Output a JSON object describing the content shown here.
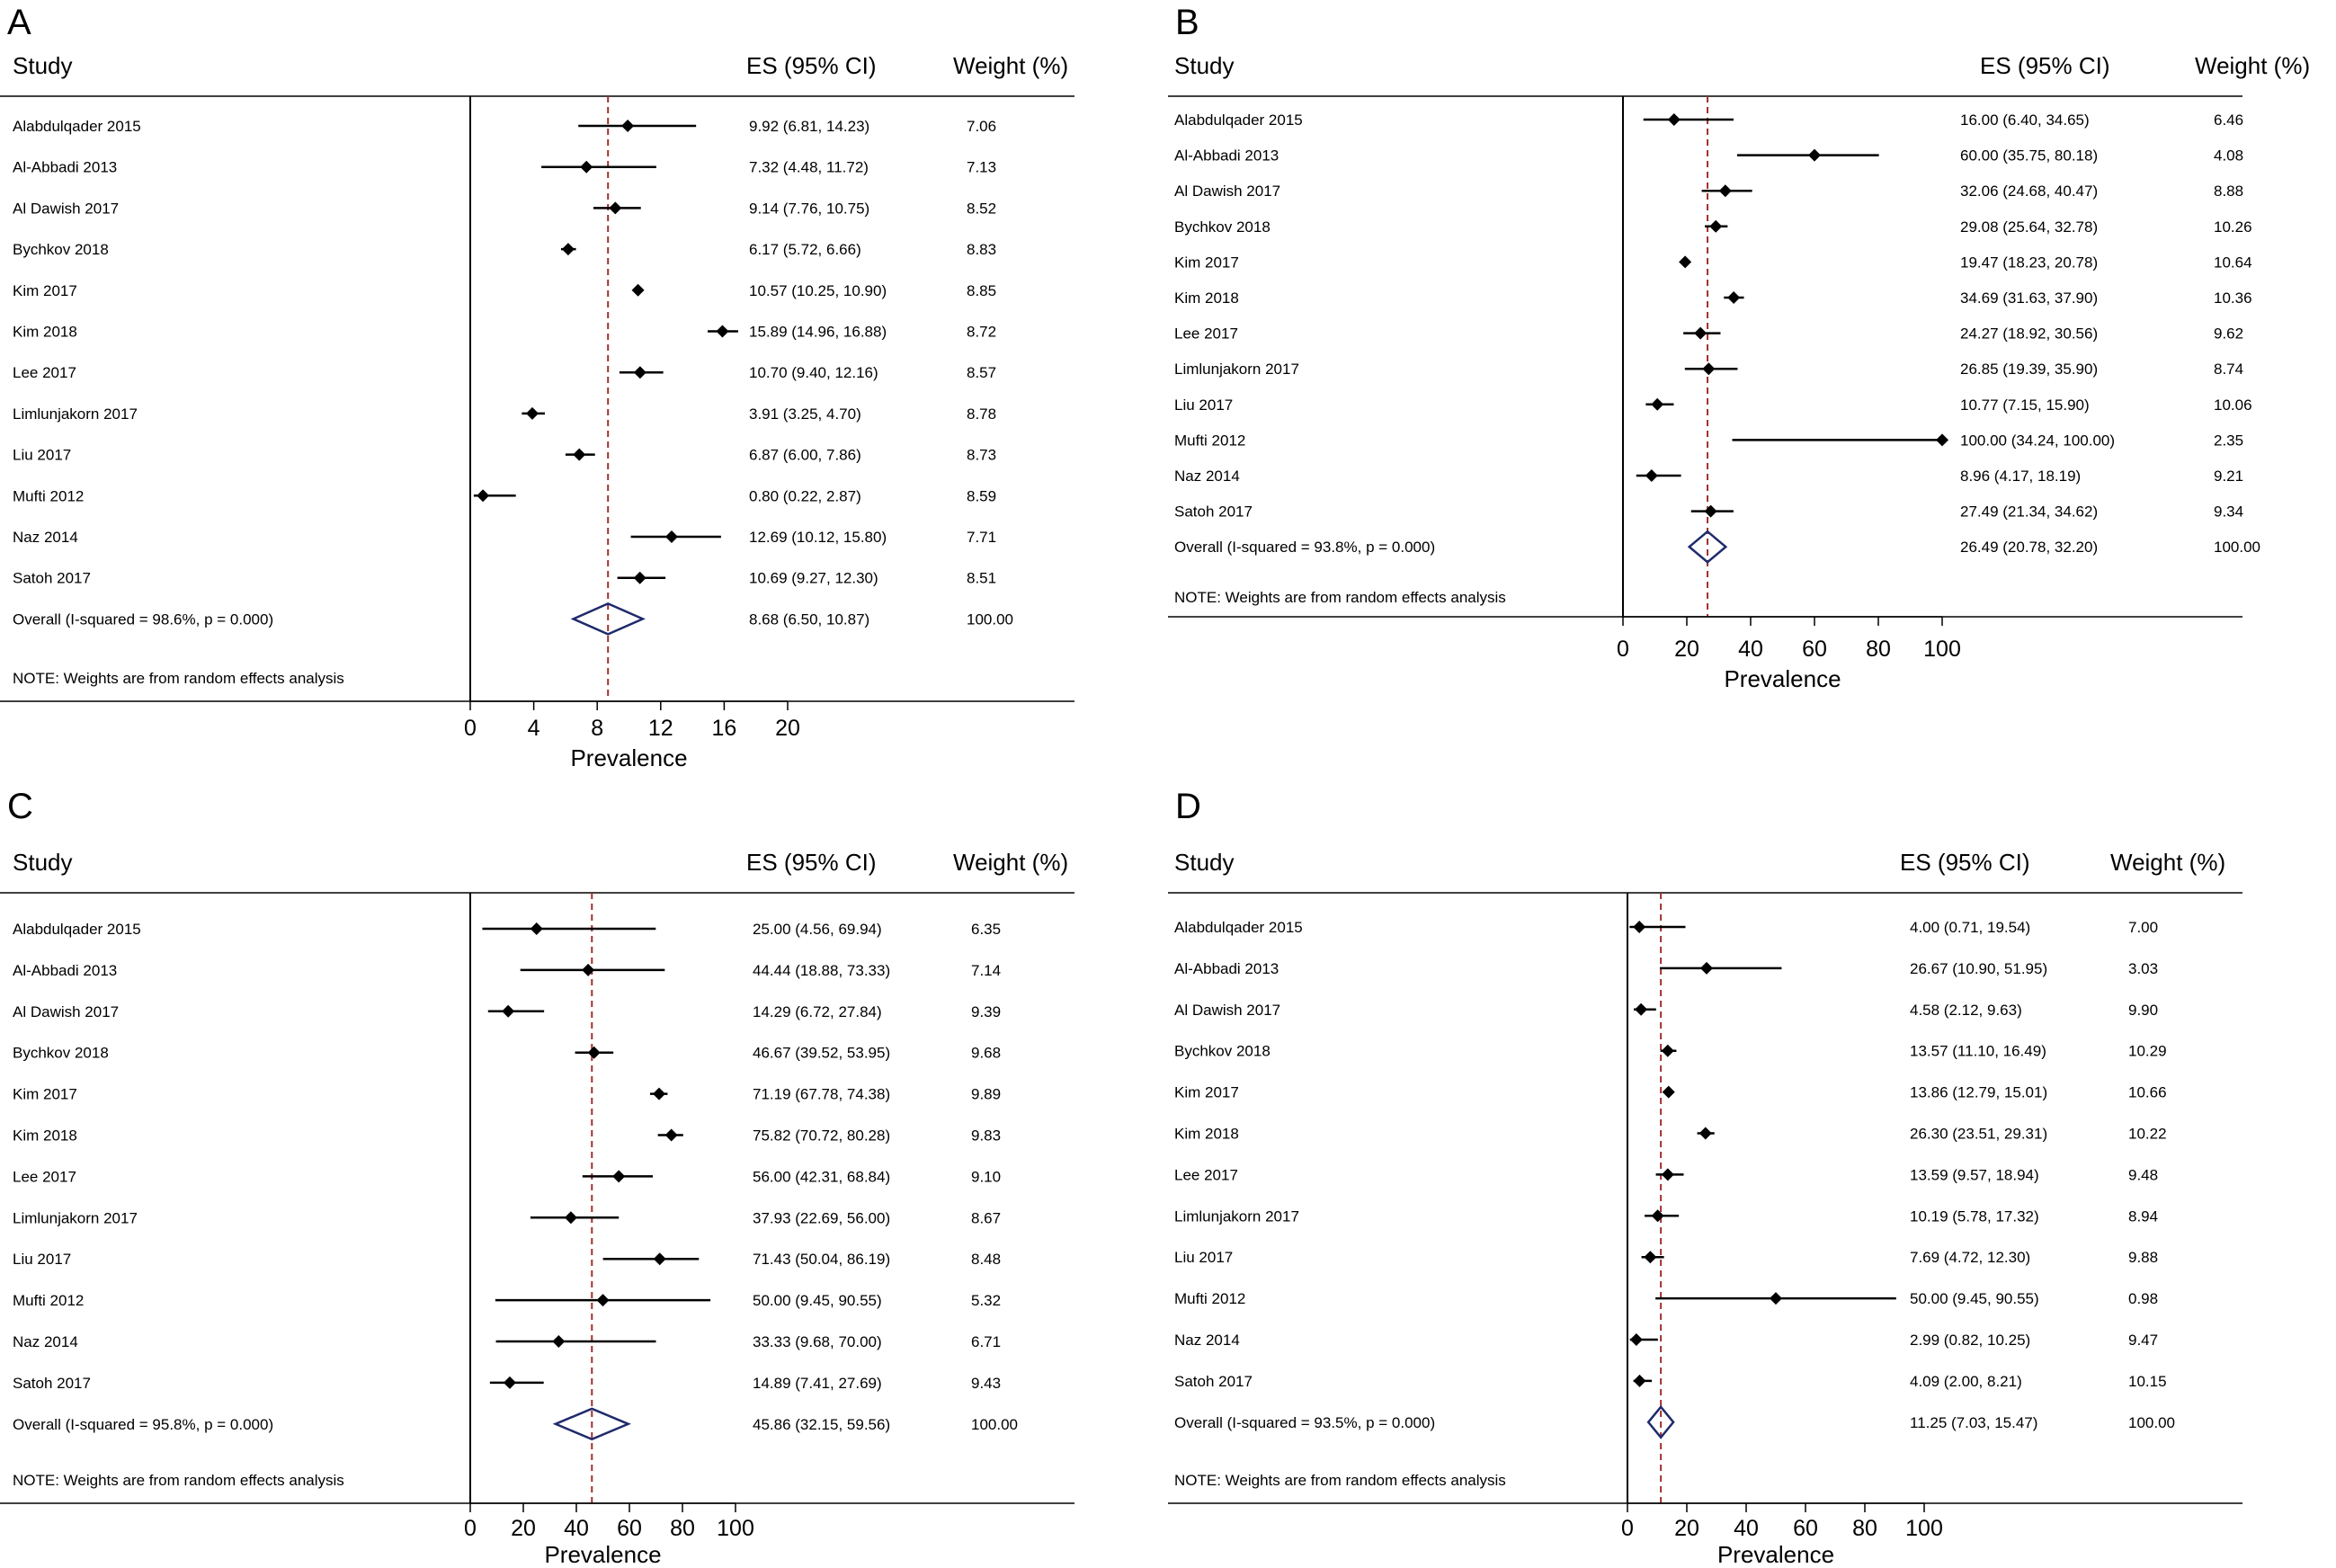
{
  "headers": {
    "study": "Study",
    "es": "ES (95% CI)",
    "weight": "Weight (%)"
  },
  "colors": {
    "marker": "#000000",
    "ci": "#000000",
    "overall_diamond": "#1f2a6b",
    "reference_line": "#a0302c"
  },
  "chart_data": [
    {
      "panel": "A",
      "type": "forest",
      "xlabel": "Prevalence",
      "xlim": [
        0,
        20
      ],
      "xticks": [
        0,
        4,
        8,
        12,
        16,
        20
      ],
      "reference_line": 8.68,
      "studies": [
        {
          "study": "Alabdulqader 2015",
          "es": 9.92,
          "lo": 6.81,
          "hi": 14.23,
          "es_text": "9.92 (6.81, 14.23)",
          "weight": "7.06"
        },
        {
          "study": "Al-Abbadi 2013",
          "es": 7.32,
          "lo": 4.48,
          "hi": 11.72,
          "es_text": "7.32 (4.48, 11.72)",
          "weight": "7.13"
        },
        {
          "study": "Al Dawish 2017",
          "es": 9.14,
          "lo": 7.76,
          "hi": 10.75,
          "es_text": "9.14 (7.76, 10.75)",
          "weight": "8.52"
        },
        {
          "study": "Bychkov 2018",
          "es": 6.17,
          "lo": 5.72,
          "hi": 6.66,
          "es_text": "6.17 (5.72, 6.66)",
          "weight": "8.83"
        },
        {
          "study": "Kim 2017",
          "es": 10.57,
          "lo": 10.25,
          "hi": 10.9,
          "es_text": "10.57 (10.25, 10.90)",
          "weight": "8.85"
        },
        {
          "study": "Kim 2018",
          "es": 15.89,
          "lo": 14.96,
          "hi": 16.88,
          "es_text": "15.89 (14.96, 16.88)",
          "weight": "8.72"
        },
        {
          "study": "Lee 2017",
          "es": 10.7,
          "lo": 9.4,
          "hi": 12.16,
          "es_text": "10.70 (9.40, 12.16)",
          "weight": "8.57"
        },
        {
          "study": "Limlunjakorn 2017",
          "es": 3.91,
          "lo": 3.25,
          "hi": 4.7,
          "es_text": "3.91 (3.25, 4.70)",
          "weight": "8.78"
        },
        {
          "study": "Liu 2017",
          "es": 6.87,
          "lo": 6.0,
          "hi": 7.86,
          "es_text": "6.87 (6.00, 7.86)",
          "weight": "8.73"
        },
        {
          "study": "Mufti 2012",
          "es": 0.8,
          "lo": 0.22,
          "hi": 2.87,
          "es_text": "0.80 (0.22, 2.87)",
          "weight": "8.59"
        },
        {
          "study": "Naz 2014",
          "es": 12.69,
          "lo": 10.12,
          "hi": 15.8,
          "es_text": "12.69 (10.12, 15.80)",
          "weight": "7.71"
        },
        {
          "study": "Satoh 2017",
          "es": 10.69,
          "lo": 9.27,
          "hi": 12.3,
          "es_text": "10.69 (9.27, 12.30)",
          "weight": "8.51"
        }
      ],
      "overall": {
        "label": "Overall  (I-squared = 98.6%, p = 0.000)",
        "es": 8.68,
        "lo": 6.5,
        "hi": 10.87,
        "es_text": "8.68 (6.50, 10.87)",
        "weight": "100.00"
      },
      "note": "NOTE: Weights are from random effects analysis"
    },
    {
      "panel": "B",
      "type": "forest",
      "xlabel": "Prevalence",
      "xlim": [
        0,
        100
      ],
      "xticks": [
        0,
        20,
        40,
        60,
        80,
        100
      ],
      "reference_line": 26.49,
      "studies": [
        {
          "study": "Alabdulqader 2015",
          "es": 16.0,
          "lo": 6.4,
          "hi": 34.65,
          "es_text": "16.00 (6.40, 34.65)",
          "weight": "6.46"
        },
        {
          "study": "Al-Abbadi 2013",
          "es": 60.0,
          "lo": 35.75,
          "hi": 80.18,
          "es_text": "60.00 (35.75, 80.18)",
          "weight": "4.08"
        },
        {
          "study": "Al Dawish 2017",
          "es": 32.06,
          "lo": 24.68,
          "hi": 40.47,
          "es_text": "32.06 (24.68, 40.47)",
          "weight": "8.88"
        },
        {
          "study": "Bychkov 2018",
          "es": 29.08,
          "lo": 25.64,
          "hi": 32.78,
          "es_text": "29.08 (25.64, 32.78)",
          "weight": "10.26"
        },
        {
          "study": "Kim 2017",
          "es": 19.47,
          "lo": 18.23,
          "hi": 20.78,
          "es_text": "19.47 (18.23, 20.78)",
          "weight": "10.64"
        },
        {
          "study": "Kim 2018",
          "es": 34.69,
          "lo": 31.63,
          "hi": 37.9,
          "es_text": "34.69 (31.63, 37.90)",
          "weight": "10.36"
        },
        {
          "study": "Lee 2017",
          "es": 24.27,
          "lo": 18.92,
          "hi": 30.56,
          "es_text": "24.27 (18.92, 30.56)",
          "weight": "9.62"
        },
        {
          "study": "Limlunjakorn 2017",
          "es": 26.85,
          "lo": 19.39,
          "hi": 35.9,
          "es_text": "26.85 (19.39, 35.90)",
          "weight": "8.74"
        },
        {
          "study": "Liu 2017",
          "es": 10.77,
          "lo": 7.15,
          "hi": 15.9,
          "es_text": "10.77 (7.15, 15.90)",
          "weight": "10.06"
        },
        {
          "study": "Mufti 2012",
          "es": 100.0,
          "lo": 34.24,
          "hi": 100.0,
          "es_text": "100.00 (34.24, 100.00)",
          "weight": "2.35"
        },
        {
          "study": "Naz 2014",
          "es": 8.96,
          "lo": 4.17,
          "hi": 18.19,
          "es_text": "8.96 (4.17, 18.19)",
          "weight": "9.21"
        },
        {
          "study": "Satoh 2017",
          "es": 27.49,
          "lo": 21.34,
          "hi": 34.62,
          "es_text": "27.49 (21.34, 34.62)",
          "weight": "9.34"
        }
      ],
      "overall": {
        "label": "Overall  (I-squared = 93.8%, p = 0.000)",
        "es": 26.49,
        "lo": 20.78,
        "hi": 32.2,
        "es_text": "26.49 (20.78, 32.20)",
        "weight": "100.00"
      },
      "note": "NOTE: Weights are from random effects analysis"
    },
    {
      "panel": "C",
      "type": "forest",
      "xlabel": "Prevalence",
      "xlim": [
        0,
        100
      ],
      "xticks": [
        0,
        20,
        40,
        60,
        80,
        100
      ],
      "reference_line": 45.86,
      "studies": [
        {
          "study": "Alabdulqader 2015",
          "es": 25.0,
          "lo": 4.56,
          "hi": 69.94,
          "es_text": "25.00 (4.56, 69.94)",
          "weight": "6.35"
        },
        {
          "study": "Al-Abbadi 2013",
          "es": 44.44,
          "lo": 18.88,
          "hi": 73.33,
          "es_text": "44.44 (18.88, 73.33)",
          "weight": "7.14"
        },
        {
          "study": "Al Dawish 2017",
          "es": 14.29,
          "lo": 6.72,
          "hi": 27.84,
          "es_text": "14.29 (6.72, 27.84)",
          "weight": "9.39"
        },
        {
          "study": "Bychkov 2018",
          "es": 46.67,
          "lo": 39.52,
          "hi": 53.95,
          "es_text": "46.67 (39.52, 53.95)",
          "weight": "9.68"
        },
        {
          "study": "Kim 2017",
          "es": 71.19,
          "lo": 67.78,
          "hi": 74.38,
          "es_text": "71.19 (67.78, 74.38)",
          "weight": "9.89"
        },
        {
          "study": "Kim 2018",
          "es": 75.82,
          "lo": 70.72,
          "hi": 80.28,
          "es_text": "75.82 (70.72, 80.28)",
          "weight": "9.83"
        },
        {
          "study": "Lee 2017",
          "es": 56.0,
          "lo": 42.31,
          "hi": 68.84,
          "es_text": "56.00 (42.31, 68.84)",
          "weight": "9.10"
        },
        {
          "study": "Limlunjakorn 2017",
          "es": 37.93,
          "lo": 22.69,
          "hi": 56.0,
          "es_text": "37.93 (22.69, 56.00)",
          "weight": "8.67"
        },
        {
          "study": "Liu 2017",
          "es": 71.43,
          "lo": 50.04,
          "hi": 86.19,
          "es_text": "71.43 (50.04, 86.19)",
          "weight": "8.48"
        },
        {
          "study": "Mufti 2012",
          "es": 50.0,
          "lo": 9.45,
          "hi": 90.55,
          "es_text": "50.00 (9.45, 90.55)",
          "weight": "5.32"
        },
        {
          "study": "Naz 2014",
          "es": 33.33,
          "lo": 9.68,
          "hi": 70.0,
          "es_text": "33.33 (9.68, 70.00)",
          "weight": "6.71"
        },
        {
          "study": "Satoh 2017",
          "es": 14.89,
          "lo": 7.41,
          "hi": 27.69,
          "es_text": "14.89 (7.41, 27.69)",
          "weight": "9.43"
        }
      ],
      "overall": {
        "label": "Overall  (I-squared = 95.8%, p = 0.000)",
        "es": 45.86,
        "lo": 32.15,
        "hi": 59.56,
        "es_text": "45.86 (32.15, 59.56)",
        "weight": "100.00"
      },
      "note": "NOTE: Weights are from random effects analysis"
    },
    {
      "panel": "D",
      "type": "forest",
      "xlabel": "Prevalence",
      "xlim": [
        0,
        100
      ],
      "xticks": [
        0,
        20,
        40,
        60,
        80,
        100
      ],
      "reference_line": 11.25,
      "studies": [
        {
          "study": "Alabdulqader 2015",
          "es": 4.0,
          "lo": 0.71,
          "hi": 19.54,
          "es_text": "4.00 (0.71, 19.54)",
          "weight": "7.00"
        },
        {
          "study": "Al-Abbadi 2013",
          "es": 26.67,
          "lo": 10.9,
          "hi": 51.95,
          "es_text": "26.67 (10.90, 51.95)",
          "weight": "3.03"
        },
        {
          "study": "Al Dawish 2017",
          "es": 4.58,
          "lo": 2.12,
          "hi": 9.63,
          "es_text": "4.58 (2.12, 9.63)",
          "weight": "9.90"
        },
        {
          "study": "Bychkov 2018",
          "es": 13.57,
          "lo": 11.1,
          "hi": 16.49,
          "es_text": "13.57 (11.10, 16.49)",
          "weight": "10.29"
        },
        {
          "study": "Kim 2017",
          "es": 13.86,
          "lo": 12.79,
          "hi": 15.01,
          "es_text": "13.86 (12.79, 15.01)",
          "weight": "10.66"
        },
        {
          "study": "Kim 2018",
          "es": 26.3,
          "lo": 23.51,
          "hi": 29.31,
          "es_text": "26.30 (23.51, 29.31)",
          "weight": "10.22"
        },
        {
          "study": "Lee 2017",
          "es": 13.59,
          "lo": 9.57,
          "hi": 18.94,
          "es_text": "13.59 (9.57, 18.94)",
          "weight": "9.48"
        },
        {
          "study": "Limlunjakorn 2017",
          "es": 10.19,
          "lo": 5.78,
          "hi": 17.32,
          "es_text": "10.19 (5.78, 17.32)",
          "weight": "8.94"
        },
        {
          "study": "Liu 2017",
          "es": 7.69,
          "lo": 4.72,
          "hi": 12.3,
          "es_text": "7.69 (4.72, 12.30)",
          "weight": "9.88"
        },
        {
          "study": "Mufti 2012",
          "es": 50.0,
          "lo": 9.45,
          "hi": 90.55,
          "es_text": "50.00 (9.45, 90.55)",
          "weight": "0.98"
        },
        {
          "study": "Naz 2014",
          "es": 2.99,
          "lo": 0.82,
          "hi": 10.25,
          "es_text": "2.99 (0.82, 10.25)",
          "weight": "9.47"
        },
        {
          "study": "Satoh 2017",
          "es": 4.09,
          "lo": 2.0,
          "hi": 8.21,
          "es_text": "4.09 (2.00, 8.21)",
          "weight": "10.15"
        }
      ],
      "overall": {
        "label": "Overall  (I-squared = 93.5%, p = 0.000)",
        "es": 11.25,
        "lo": 7.03,
        "hi": 15.47,
        "es_text": "11.25 (7.03, 15.47)",
        "weight": "100.00"
      },
      "note": "NOTE: Weights are from random effects analysis"
    }
  ]
}
